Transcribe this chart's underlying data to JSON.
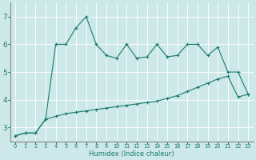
{
  "xlabel": "Humidex (Indice chaleur)",
  "ylabel": "",
  "background_color": "#cce8e8",
  "line_color": "#1a7a6e",
  "grid_color": "#ffffff",
  "xlim": [
    -0.5,
    23.5
  ],
  "ylim": [
    2.5,
    7.5
  ],
  "yticks": [
    3,
    4,
    5,
    6,
    7
  ],
  "xticks": [
    0,
    1,
    2,
    3,
    4,
    5,
    6,
    7,
    8,
    9,
    10,
    11,
    12,
    13,
    14,
    15,
    16,
    17,
    18,
    19,
    20,
    21,
    22,
    23
  ],
  "line1_x": [
    0,
    1,
    2,
    3,
    4,
    5,
    6,
    7,
    8,
    9,
    10,
    11,
    12,
    13,
    14,
    15,
    16,
    17,
    18,
    19,
    20,
    21,
    22,
    23
  ],
  "line1_y": [
    2.7,
    2.8,
    2.8,
    3.3,
    6.0,
    6.0,
    6.6,
    7.0,
    6.0,
    5.6,
    5.5,
    6.0,
    5.5,
    5.55,
    6.0,
    5.55,
    5.6,
    6.0,
    6.0,
    5.6,
    5.9,
    5.0,
    5.0,
    4.2
  ],
  "line2_x": [
    0,
    1,
    2,
    3,
    4,
    5,
    6,
    7,
    8,
    9,
    10,
    11,
    12,
    13,
    14,
    15,
    16,
    17,
    18,
    19,
    20,
    21,
    22,
    23
  ],
  "line2_y": [
    2.7,
    2.8,
    2.8,
    3.3,
    3.4,
    3.5,
    3.55,
    3.6,
    3.65,
    3.7,
    3.75,
    3.8,
    3.85,
    3.9,
    3.95,
    4.05,
    4.15,
    4.3,
    4.45,
    4.6,
    4.75,
    4.85,
    4.1,
    4.2
  ],
  "xlabel_fontsize": 6.0,
  "ytick_fontsize": 6.5,
  "xtick_fontsize": 4.8
}
